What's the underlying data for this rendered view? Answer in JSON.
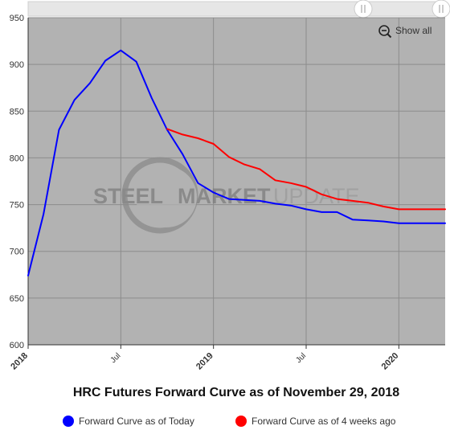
{
  "chart_data": {
    "type": "line",
    "title": "HRC Futures Forward Curve as of November 29, 2018",
    "xlabel": "",
    "ylabel": "",
    "ylim": [
      600,
      950
    ],
    "y_ticks": [
      600,
      650,
      700,
      750,
      800,
      850,
      900,
      950
    ],
    "x_range": [
      "2018-01",
      "2020-04"
    ],
    "x_ticks": [
      {
        "label": "2018",
        "date": "2018-01",
        "major": true
      },
      {
        "label": "Jul",
        "date": "2018-07",
        "major": false
      },
      {
        "label": "2019",
        "date": "2019-01",
        "major": true
      },
      {
        "label": "Jul",
        "date": "2019-07",
        "major": false
      },
      {
        "label": "2020",
        "date": "2020-01",
        "major": true
      }
    ],
    "grid": true,
    "legend_position": "bottom",
    "series": [
      {
        "name": "Forward Curve as of Today",
        "color": "#0000ff",
        "x": [
          "2018-01",
          "2018-02",
          "2018-03",
          "2018-04",
          "2018-05",
          "2018-06",
          "2018-07",
          "2018-08",
          "2018-09",
          "2018-10",
          "2018-11",
          "2018-12",
          "2019-01",
          "2019-02",
          "2019-03",
          "2019-04",
          "2019-05",
          "2019-06",
          "2019-07",
          "2019-08",
          "2019-09",
          "2019-10",
          "2019-11",
          "2019-12",
          "2020-01",
          "2020-02",
          "2020-03",
          "2020-04"
        ],
        "values": [
          674,
          740,
          830,
          862,
          880,
          904,
          915,
          903,
          864,
          830,
          804,
          773,
          763,
          756,
          755,
          754,
          751,
          749,
          745,
          742,
          742,
          734,
          733,
          732,
          730,
          730,
          730,
          730
        ]
      },
      {
        "name": "Forward Curve as of 4 weeks ago",
        "color": "#ff0000",
        "x": [
          "2018-10",
          "2018-11",
          "2018-12",
          "2019-01",
          "2019-02",
          "2019-03",
          "2019-04",
          "2019-05",
          "2019-06",
          "2019-07",
          "2019-08",
          "2019-09",
          "2019-10",
          "2019-11",
          "2019-12",
          "2020-01",
          "2020-02",
          "2020-03",
          "2020-04"
        ],
        "values": [
          831,
          825,
          821,
          815,
          801,
          793,
          788,
          776,
          773,
          769,
          761,
          756,
          754,
          752,
          748,
          745,
          745,
          745,
          745
        ]
      }
    ]
  },
  "watermark": {
    "left": "STEEL",
    "middle": "MARKET",
    "right": "UPDATE"
  },
  "controls": {
    "show_all_label": "Show all",
    "zoom_icon": "zoom-out-icon",
    "navigator_handle_icon": "grip-handle-icon"
  },
  "colors": {
    "plot_background": "#b2b2b2",
    "grid": "#8c8c8c",
    "navigator": "#e6e6e6"
  }
}
